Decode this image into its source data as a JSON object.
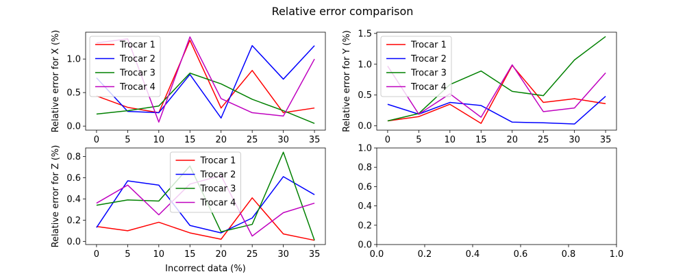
{
  "suptitle": "Relative error comparison",
  "colors": {
    "trocar1": "#ff0000",
    "trocar2": "#0000ff",
    "trocar3": "#008000",
    "trocar4": "#bf00bf"
  },
  "chart_data": [
    {
      "type": "line",
      "id": "x",
      "xlabel": "",
      "ylabel": "Relative error for X (%)",
      "xlim": [
        -1.75,
        36.75
      ],
      "ylim": [
        -0.06,
        1.4
      ],
      "xticks": [
        0,
        5,
        10,
        15,
        20,
        25,
        30,
        35
      ],
      "yticks": [
        0.0,
        0.5,
        1.0
      ],
      "xtick_labels": [
        "0",
        "5",
        "10",
        "15",
        "20",
        "25",
        "30",
        "35"
      ],
      "ytick_labels": [
        "0.0",
        "0.5",
        "1.0"
      ],
      "legend_position": "upper-left",
      "x": [
        0,
        5,
        10,
        15,
        20,
        25,
        30,
        35
      ],
      "series": [
        {
          "name": "Trocar 1",
          "color": "#ff0000",
          "values": [
            0.45,
            0.28,
            0.2,
            1.28,
            0.27,
            0.83,
            0.2,
            0.27
          ]
        },
        {
          "name": "Trocar 2",
          "color": "#0000ff",
          "values": [
            0.72,
            0.22,
            0.2,
            0.77,
            0.12,
            1.2,
            0.7,
            1.2
          ]
        },
        {
          "name": "Trocar 3",
          "color": "#008000",
          "values": [
            0.18,
            0.23,
            0.3,
            0.79,
            0.63,
            0.4,
            0.23,
            0.04
          ]
        },
        {
          "name": "Trocar 4",
          "color": "#bf00bf",
          "values": [
            1.24,
            1.3,
            0.06,
            1.33,
            0.41,
            0.2,
            0.15,
            1.0
          ]
        }
      ]
    },
    {
      "type": "line",
      "id": "y",
      "xlabel": "",
      "ylabel": "Relative error for Y (%)",
      "xlim": [
        -1.75,
        36.75
      ],
      "ylim": [
        -0.07,
        1.52
      ],
      "xticks": [
        0,
        5,
        10,
        15,
        20,
        25,
        30,
        35
      ],
      "yticks": [
        0.0,
        0.5,
        1.0,
        1.5
      ],
      "xtick_labels": [
        "0",
        "5",
        "10",
        "15",
        "20",
        "25",
        "30",
        "35"
      ],
      "ytick_labels": [
        "0.0",
        "0.5",
        "1.0",
        "1.5"
      ],
      "legend_position": "upper-left",
      "x": [
        0,
        5,
        10,
        15,
        20,
        25,
        30,
        35
      ],
      "series": [
        {
          "name": "Trocar 1",
          "color": "#ff0000",
          "values": [
            0.08,
            0.15,
            0.35,
            0.04,
            0.98,
            0.38,
            0.44,
            0.36
          ]
        },
        {
          "name": "Trocar 2",
          "color": "#0000ff",
          "values": [
            0.35,
            0.19,
            0.38,
            0.33,
            0.06,
            0.05,
            0.03,
            0.48
          ]
        },
        {
          "name": "Trocar 3",
          "color": "#008000",
          "values": [
            0.08,
            0.2,
            0.67,
            0.89,
            0.56,
            0.49,
            1.07,
            1.45
          ]
        },
        {
          "name": "Trocar 4",
          "color": "#bf00bf",
          "values": [
            0.97,
            0.19,
            0.52,
            0.14,
            0.99,
            0.23,
            0.29,
            0.86
          ]
        }
      ]
    },
    {
      "type": "line",
      "id": "z",
      "xlabel": "Incorrect data (%)",
      "ylabel": "Relative error for Z (%)",
      "xlim": [
        -1.75,
        36.75
      ],
      "ylim": [
        -0.03,
        0.88
      ],
      "xticks": [
        0,
        5,
        10,
        15,
        20,
        25,
        30,
        35
      ],
      "yticks": [
        0.0,
        0.2,
        0.4,
        0.6,
        0.8
      ],
      "xtick_labels": [
        "0",
        "5",
        "10",
        "15",
        "20",
        "25",
        "30",
        "35"
      ],
      "ytick_labels": [
        "0.0",
        "0.2",
        "0.4",
        "0.6",
        "0.8"
      ],
      "legend_position": "upper-center",
      "x": [
        0,
        5,
        10,
        15,
        20,
        25,
        30,
        35
      ],
      "series": [
        {
          "name": "Trocar 1",
          "color": "#ff0000",
          "values": [
            0.14,
            0.1,
            0.18,
            0.08,
            0.02,
            0.41,
            0.07,
            0.01
          ]
        },
        {
          "name": "Trocar 2",
          "color": "#0000ff",
          "values": [
            0.13,
            0.57,
            0.53,
            0.15,
            0.08,
            0.22,
            0.61,
            0.44
          ]
        },
        {
          "name": "Trocar 3",
          "color": "#008000",
          "values": [
            0.34,
            0.39,
            0.38,
            0.71,
            0.09,
            0.16,
            0.84,
            0.01
          ]
        },
        {
          "name": "Trocar 4",
          "color": "#bf00bf",
          "values": [
            0.36,
            0.53,
            0.25,
            0.54,
            0.62,
            0.05,
            0.27,
            0.36
          ]
        }
      ]
    },
    {
      "type": "line",
      "id": "empty",
      "xlabel": "",
      "ylabel": "",
      "xlim": [
        0,
        1
      ],
      "ylim": [
        0,
        1
      ],
      "xticks": [
        0.0,
        0.2,
        0.4,
        0.6,
        0.8,
        1.0
      ],
      "yticks": [
        0.0,
        0.2,
        0.4,
        0.6,
        0.8,
        1.0
      ],
      "xtick_labels": [
        "0.0",
        "0.2",
        "0.4",
        "0.6",
        "0.8",
        "1.0"
      ],
      "ytick_labels": [
        "0.0",
        "0.2",
        "0.4",
        "0.6",
        "0.8",
        "1.0"
      ],
      "x": [],
      "series": []
    }
  ]
}
